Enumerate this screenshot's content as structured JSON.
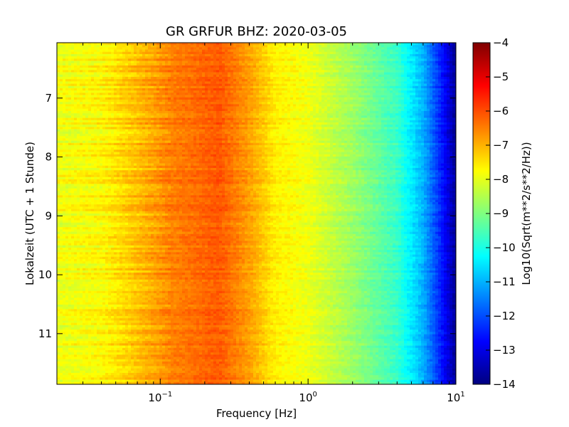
{
  "chart_data": {
    "type": "heatmap",
    "title": "GR GRFUR BHZ: 2020-03-05",
    "xlabel": "Frequency [Hz]",
    "ylabel": "Lokalzeit (UTC + 1 Stunde)",
    "colorbar_label": "Log10(Sqrt(m**2/s**2/Hz))",
    "x_scale": "log",
    "xlim": [
      0.02,
      10
    ],
    "x_ticks": [
      {
        "value": 0.1,
        "base": "10",
        "exp": "−1"
      },
      {
        "value": 1,
        "base": "10",
        "exp": "0"
      },
      {
        "value": 10,
        "base": "10",
        "exp": "1"
      }
    ],
    "ylim": [
      6.06,
      11.86
    ],
    "y_inverted": true,
    "y_ticks": [
      "7",
      "8",
      "9",
      "10",
      "11"
    ],
    "colorbar_range": [
      -14,
      -4
    ],
    "colorbar_ticks": [
      "−4",
      "−5",
      "−6",
      "−7",
      "−8",
      "−9",
      "−10",
      "−11",
      "−12",
      "−13",
      "−14"
    ],
    "colormap": "jet",
    "spectrum_profile": [
      {
        "freq": 0.02,
        "value": -7.9
      },
      {
        "freq": 0.04,
        "value": -7.7
      },
      {
        "freq": 0.06,
        "value": -7.3
      },
      {
        "freq": 0.12,
        "value": -6.5
      },
      {
        "freq": 0.25,
        "value": -6.1
      },
      {
        "freq": 0.4,
        "value": -6.8
      },
      {
        "freq": 0.6,
        "value": -7.6
      },
      {
        "freq": 1,
        "value": -7.9
      },
      {
        "freq": 2,
        "value": -8.7
      },
      {
        "freq": 4,
        "value": -9.7
      },
      {
        "freq": 6,
        "value": -11.0
      },
      {
        "freq": 8,
        "value": -12.5
      },
      {
        "freq": 10,
        "value": -13.8
      }
    ]
  },
  "colors": {
    "jet": [
      "#00007f",
      "#0000ff",
      "#007fff",
      "#00ffff",
      "#7fff7f",
      "#ffff00",
      "#ff7f00",
      "#ff0000",
      "#7f0000"
    ]
  }
}
